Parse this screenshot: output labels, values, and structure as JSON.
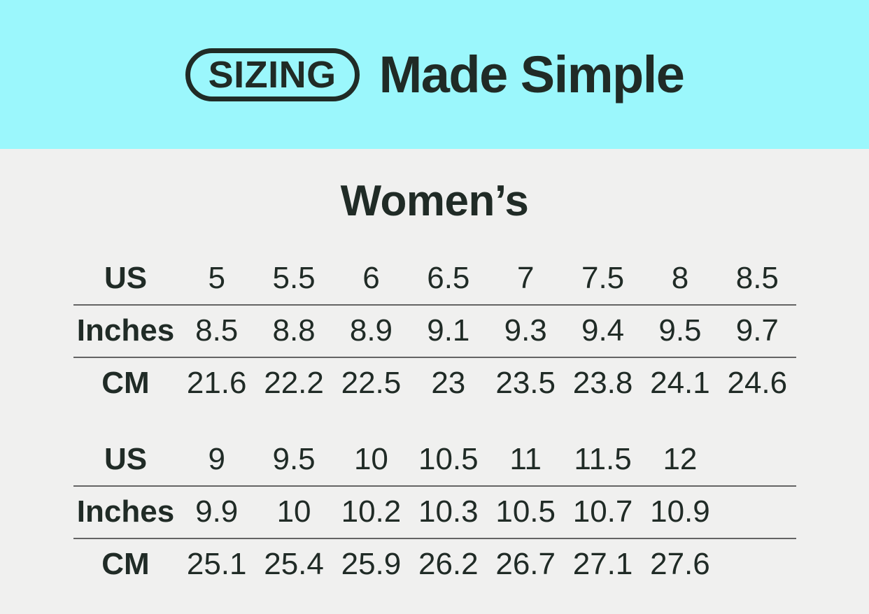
{
  "banner": {
    "badge_label": "SIZING",
    "title": "Made Simple",
    "background_color": "#9BF7FC",
    "text_color": "#202B26"
  },
  "section": {
    "heading": "Women’s",
    "background_color": "#F0F0EF"
  },
  "chart_data": {
    "type": "table",
    "title": "SIZING Made Simple",
    "subtitle": "Women’s",
    "divider_color": "#646464",
    "tables": [
      {
        "rows": [
          {
            "label": "US",
            "values": [
              "5",
              "5.5",
              "6",
              "6.5",
              "7",
              "7.5",
              "8",
              "8.5"
            ]
          },
          {
            "label": "Inches",
            "values": [
              "8.5",
              "8.8",
              "8.9",
              "9.1",
              "9.3",
              "9.4",
              "9.5",
              "9.7"
            ]
          },
          {
            "label": "CM",
            "values": [
              "21.6",
              "22.2",
              "22.5",
              "23",
              "23.5",
              "23.8",
              "24.1",
              "24.6"
            ]
          }
        ]
      },
      {
        "rows": [
          {
            "label": "US",
            "values": [
              "9",
              "9.5",
              "10",
              "10.5",
              "11",
              "11.5",
              "12"
            ]
          },
          {
            "label": "Inches",
            "values": [
              "9.9",
              "10",
              "10.2",
              "10.3",
              "10.5",
              "10.7",
              "10.9"
            ]
          },
          {
            "label": "CM",
            "values": [
              "25.1",
              "25.4",
              "25.9",
              "26.2",
              "26.7",
              "27.1",
              "27.6"
            ]
          }
        ]
      }
    ]
  }
}
